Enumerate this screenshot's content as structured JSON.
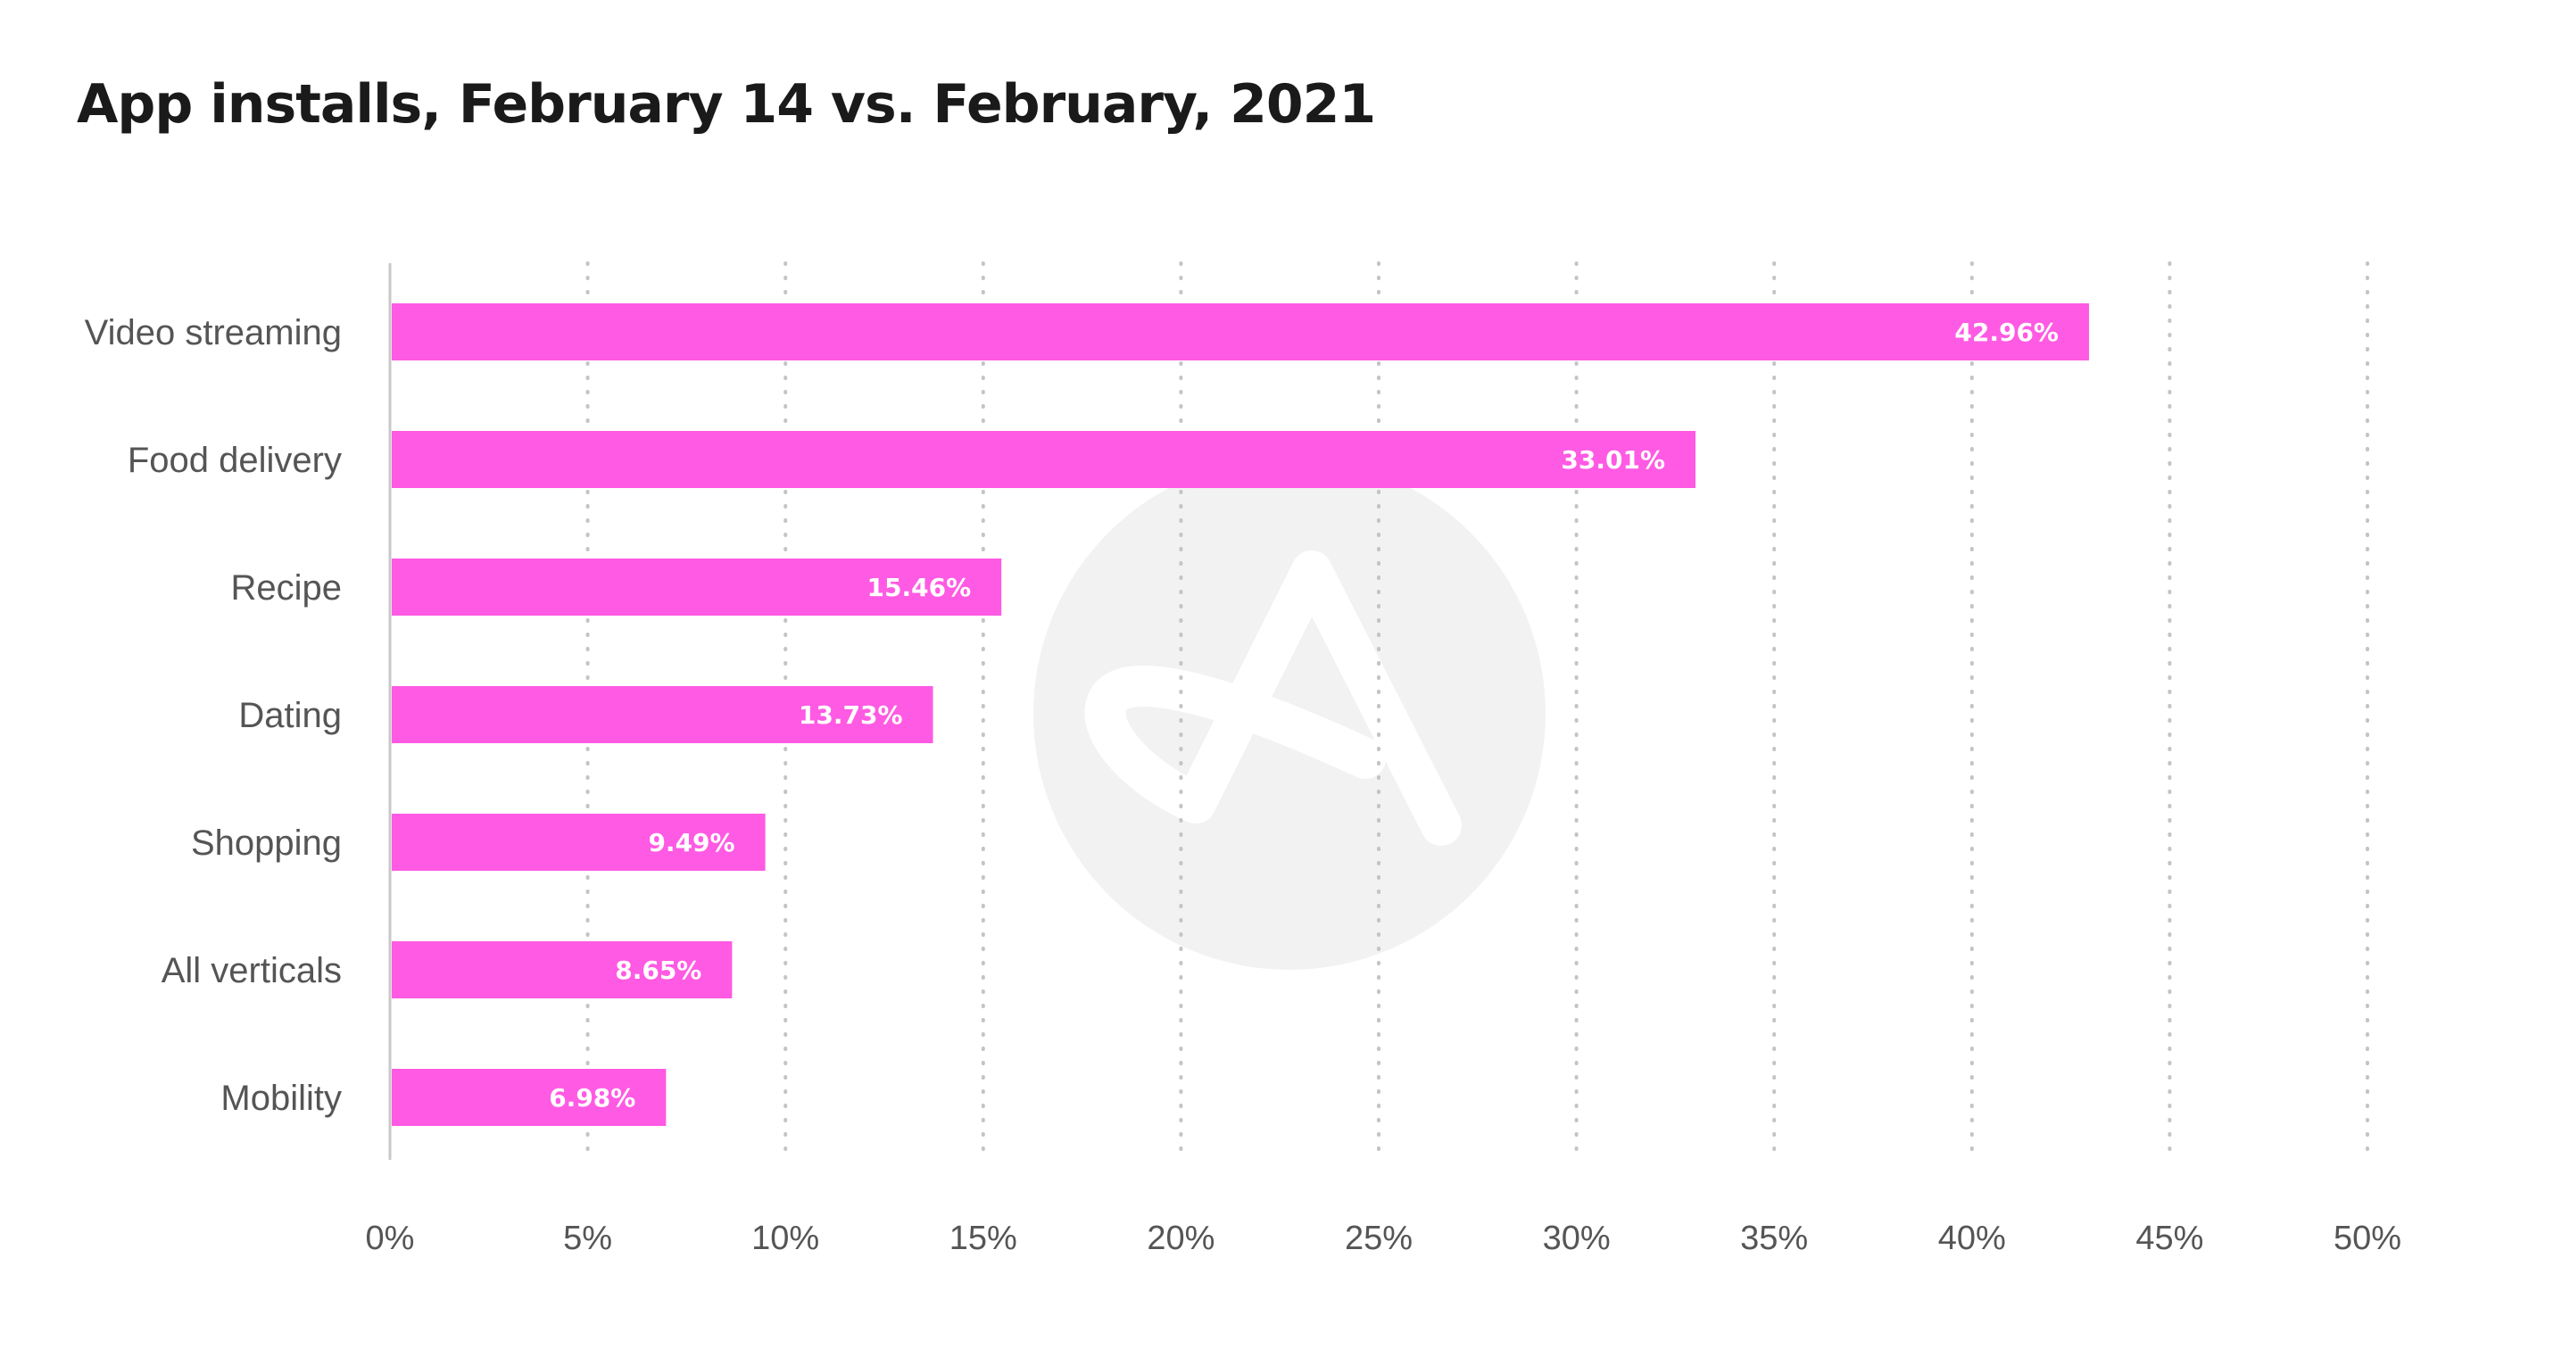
{
  "chart_data": {
    "type": "bar",
    "orientation": "horizontal",
    "title": "App installs, February 14 vs. February, 2021",
    "categories": [
      "Video streaming",
      "Food delivery",
      "Recipe",
      "Dating",
      "Shopping",
      "All verticals",
      "Mobility"
    ],
    "values": [
      42.96,
      33.01,
      15.46,
      13.73,
      9.49,
      8.65,
      6.98
    ],
    "data_labels": [
      "42.96%",
      "33.01%",
      "15.46%",
      "13.73%",
      "9.49%",
      "8.65%",
      "6.98%"
    ],
    "xlim": [
      0,
      50
    ],
    "x_ticks": [
      0,
      5,
      10,
      15,
      20,
      25,
      30,
      35,
      40,
      45,
      50
    ],
    "x_tick_labels": [
      "0%",
      "5%",
      "10%",
      "15%",
      "20%",
      "25%",
      "30%",
      "35%",
      "40%",
      "45%",
      "50%"
    ],
    "grid": "vertical dotted",
    "bar_color": "#ff5ae3"
  }
}
